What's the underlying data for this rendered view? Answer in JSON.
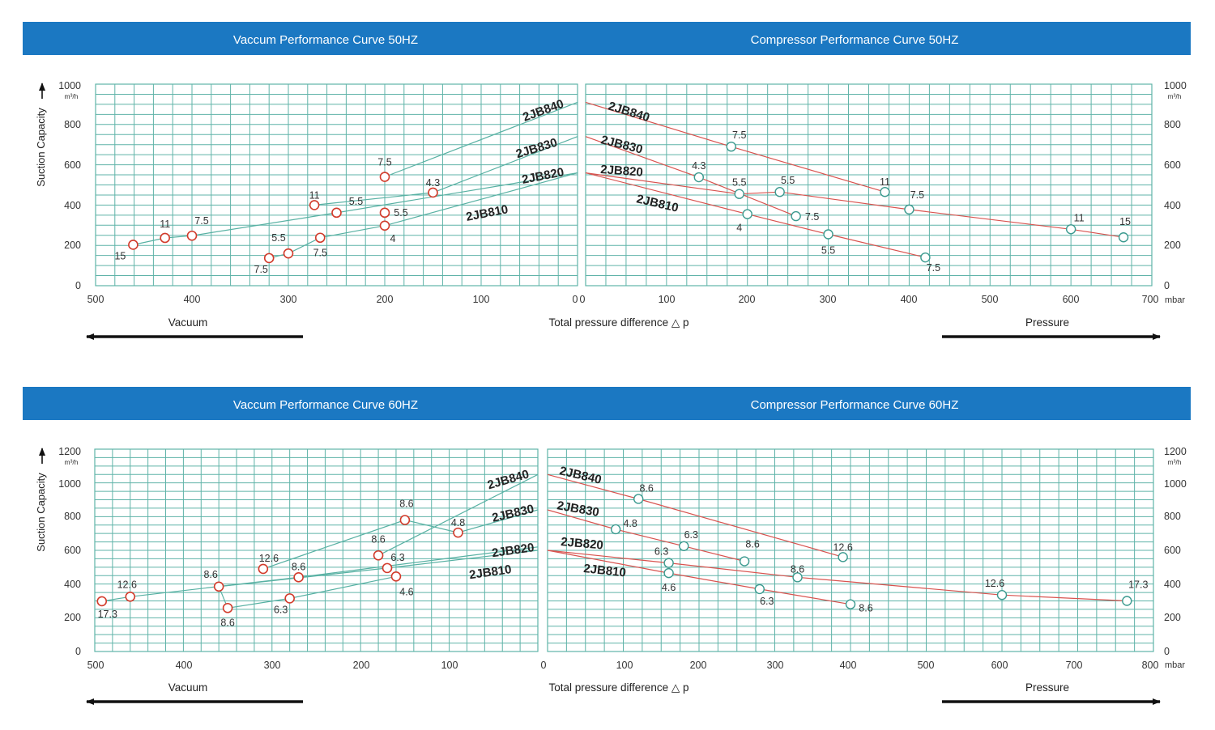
{
  "figure": {
    "sections": [
      {
        "id": "50hz",
        "vacuum_title": "Vaccum Performance Curve 50HZ",
        "compressor_title": "Compressor Performance Curve 50HZ",
        "ylabel": "Suction Capacity",
        "y_unit": "m³/h",
        "x_unit": "mbar",
        "xlabel": "Total pressure difference △ p",
        "vacuum_arrow_label": "Vacuum",
        "pressure_arrow_label": "Pressure",
        "y_ticks": [
          0,
          200,
          400,
          600,
          800,
          1000
        ],
        "vacuum_x_ticks": [
          500,
          400,
          300,
          200,
          100,
          0
        ],
        "compressor_x_ticks": [
          0,
          100,
          200,
          300,
          400,
          500,
          600,
          700
        ]
      },
      {
        "id": "60hz",
        "vacuum_title": "Vaccum Performance Curve 60HZ",
        "compressor_title": "Compressor Performance Curve 60HZ",
        "ylabel": "Suction Capacity",
        "y_unit": "m³/h",
        "x_unit": "mbar",
        "xlabel": "Total pressure difference △ p",
        "vacuum_arrow_label": "Vacuum",
        "pressure_arrow_label": "Pressure",
        "y_ticks": [
          0,
          200,
          400,
          600,
          800,
          1000,
          1200
        ],
        "vacuum_x_ticks": [
          500,
          400,
          300,
          200,
          100,
          0
        ],
        "compressor_x_ticks": [
          0,
          100,
          200,
          300,
          400,
          500,
          600,
          700,
          800
        ]
      }
    ]
  },
  "chart_data": [
    {
      "type": "line",
      "title": "Vaccum Performance Curve 50HZ",
      "xlabel": "Total pressure difference △ p (mbar, vacuum)",
      "ylabel": "Suction Capacity (m³/h)",
      "xlim": [
        500,
        0
      ],
      "ylim": [
        0,
        1000
      ],
      "series": [
        {
          "name": "2JB840",
          "x": [
            0,
            200
          ],
          "y": [
            910,
            540
          ],
          "end_label": "2JB840",
          "points": [
            {
              "x": 200,
              "y": 540,
              "label": "7.5"
            }
          ]
        },
        {
          "name": "2JB830",
          "x": [
            0,
            150,
            273
          ],
          "y": [
            740,
            462,
            400
          ],
          "end_label": "2JB830",
          "points": [
            {
              "x": 273,
              "y": 400,
              "label": "11"
            },
            {
              "x": 150,
              "y": 462,
              "label": "4.3"
            }
          ]
        },
        {
          "name": "2JB820",
          "x": [
            0,
            250,
            400,
            428,
            461
          ],
          "y": [
            560,
            362,
            248,
            237,
            203
          ],
          "end_label": "2JB820",
          "points": [
            {
              "x": 461,
              "y": 203,
              "label": "15"
            },
            {
              "x": 428,
              "y": 237,
              "label": "11"
            },
            {
              "x": 400,
              "y": 248,
              "label": "7.5"
            },
            {
              "x": 250,
              "y": 362,
              "label": "5.5"
            }
          ]
        },
        {
          "name": "2JB810",
          "x": [
            0,
            200,
            267,
            300,
            320
          ],
          "y": [
            560,
            298,
            238,
            160,
            137
          ],
          "end_label": "2JB810",
          "points": [
            {
              "x": 320,
              "y": 137,
              "label": "7.5"
            },
            {
              "x": 300,
              "y": 160,
              "label": "5.5"
            },
            {
              "x": 267,
              "y": 238,
              "label": "7.5"
            },
            {
              "x": 200,
              "y": 362,
              "label": "5.5"
            },
            {
              "x": 200,
              "y": 298,
              "label": "4"
            }
          ]
        }
      ]
    },
    {
      "type": "line",
      "title": "Compressor Performance Curve 50HZ",
      "xlabel": "Total pressure difference △ p (mbar, pressure)",
      "ylabel": "Suction Capacity (m³/h)",
      "xlim": [
        0,
        700
      ],
      "ylim": [
        0,
        1000
      ],
      "series": [
        {
          "name": "2JB840",
          "x": [
            0,
            180,
            370
          ],
          "y": [
            910,
            690,
            465
          ],
          "end_label": "2JB840",
          "points": [
            {
              "x": 180,
              "y": 690,
              "label": "7.5"
            },
            {
              "x": 370,
              "y": 465,
              "label": "11"
            }
          ]
        },
        {
          "name": "2JB830",
          "x": [
            0,
            140,
            260
          ],
          "y": [
            740,
            538,
            345
          ],
          "end_label": "2JB830",
          "points": [
            {
              "x": 140,
              "y": 538,
              "label": "4.3"
            },
            {
              "x": 260,
              "y": 345,
              "label": "7.5"
            }
          ]
        },
        {
          "name": "2JB820",
          "x": [
            0,
            190,
            240,
            400,
            600,
            665
          ],
          "y": [
            560,
            455,
            465,
            378,
            280,
            240
          ],
          "end_label": "2JB820",
          "points": [
            {
              "x": 190,
              "y": 455,
              "label": "5.5"
            },
            {
              "x": 240,
              "y": 465,
              "label": "5.5"
            },
            {
              "x": 400,
              "y": 378,
              "label": "7.5"
            },
            {
              "x": 600,
              "y": 280,
              "label": "11"
            },
            {
              "x": 665,
              "y": 240,
              "label": "15"
            }
          ]
        },
        {
          "name": "2JB810",
          "x": [
            0,
            200,
            300,
            420
          ],
          "y": [
            560,
            355,
            255,
            140
          ],
          "end_label": "2JB810",
          "points": [
            {
              "x": 200,
              "y": 355,
              "label": "4"
            },
            {
              "x": 300,
              "y": 255,
              "label": "5.5"
            },
            {
              "x": 420,
              "y": 140,
              "label": "7.5"
            }
          ]
        }
      ]
    },
    {
      "type": "line",
      "title": "Vaccum Performance Curve 60HZ",
      "xlabel": "Total pressure difference △ p (mbar, vacuum)",
      "ylabel": "Suction Capacity (m³/h)",
      "xlim": [
        500,
        0
      ],
      "ylim": [
        0,
        1200
      ],
      "series": [
        {
          "name": "2JB840",
          "x": [
            0,
            180
          ],
          "y": [
            1050,
            570
          ],
          "end_label": "2JB840",
          "points": [
            {
              "x": 180,
              "y": 570,
              "label": "8.6"
            }
          ]
        },
        {
          "name": "2JB830",
          "x": [
            0,
            90,
            150,
            310
          ],
          "y": [
            840,
            705,
            780,
            490
          ],
          "end_label": "2JB830",
          "points": [
            {
              "x": 150,
              "y": 780,
              "label": "8.6"
            },
            {
              "x": 90,
              "y": 705,
              "label": "4.8"
            },
            {
              "x": 310,
              "y": 490,
              "label": "12.6"
            }
          ]
        },
        {
          "name": "2JB820",
          "x": [
            0,
            270,
            460,
            492
          ],
          "y": [
            620,
            440,
            325,
            298
          ],
          "end_label": "2JB820",
          "points": [
            {
              "x": 492,
              "y": 298,
              "label": "17.3"
            },
            {
              "x": 460,
              "y": 325,
              "label": "12.6"
            },
            {
              "x": 270,
              "y": 440,
              "label": "8.6"
            }
          ]
        },
        {
          "name": "2JB810",
          "x": [
            0,
            170,
            360,
            350,
            280,
            160
          ],
          "y": [
            600,
            495,
            385,
            258,
            315,
            445
          ],
          "end_label": "2JB810",
          "points": [
            {
              "x": 360,
              "y": 385,
              "label": "8.6"
            },
            {
              "x": 350,
              "y": 258,
              "label": "8.6"
            },
            {
              "x": 280,
              "y": 315,
              "label": "6.3"
            },
            {
              "x": 170,
              "y": 495,
              "label": "6.3"
            },
            {
              "x": 160,
              "y": 445,
              "label": "4.6"
            }
          ]
        }
      ]
    },
    {
      "type": "line",
      "title": "Compressor Performance Curve 60HZ",
      "xlabel": "Total pressure difference △ p (mbar, pressure)",
      "ylabel": "Suction Capacity (m³/h)",
      "xlim": [
        0,
        800
      ],
      "ylim": [
        0,
        1200
      ],
      "series": [
        {
          "name": "2JB840",
          "x": [
            0,
            120,
            390
          ],
          "y": [
            1050,
            905,
            560
          ],
          "end_label": "2JB840",
          "points": [
            {
              "x": 120,
              "y": 905,
              "label": "8.6"
            },
            {
              "x": 390,
              "y": 560,
              "label": "12.6"
            }
          ]
        },
        {
          "name": "2JB830",
          "x": [
            0,
            90,
            180,
            260
          ],
          "y": [
            840,
            725,
            625,
            535
          ],
          "end_label": "2JB830",
          "points": [
            {
              "x": 90,
              "y": 725,
              "label": "4.8"
            },
            {
              "x": 180,
              "y": 625,
              "label": "6.3"
            },
            {
              "x": 260,
              "y": 535,
              "label": "8.6"
            }
          ]
        },
        {
          "name": "2JB820",
          "x": [
            0,
            160,
            330,
            600,
            765
          ],
          "y": [
            600,
            525,
            440,
            335,
            300
          ],
          "end_label": "2JB820",
          "points": [
            {
              "x": 160,
              "y": 525,
              "label": "6.3"
            },
            {
              "x": 330,
              "y": 440,
              "label": "8.6"
            },
            {
              "x": 600,
              "y": 335,
              "label": "12.6"
            },
            {
              "x": 765,
              "y": 300,
              "label": "17.3"
            }
          ]
        },
        {
          "name": "2JB810",
          "x": [
            0,
            160,
            280,
            400
          ],
          "y": [
            600,
            465,
            370,
            280
          ],
          "end_label": "2JB810",
          "points": [
            {
              "x": 160,
              "y": 465,
              "label": "4.6"
            },
            {
              "x": 280,
              "y": 370,
              "label": "6.3"
            },
            {
              "x": 400,
              "y": 280,
              "label": "8.6"
            }
          ]
        }
      ]
    }
  ]
}
